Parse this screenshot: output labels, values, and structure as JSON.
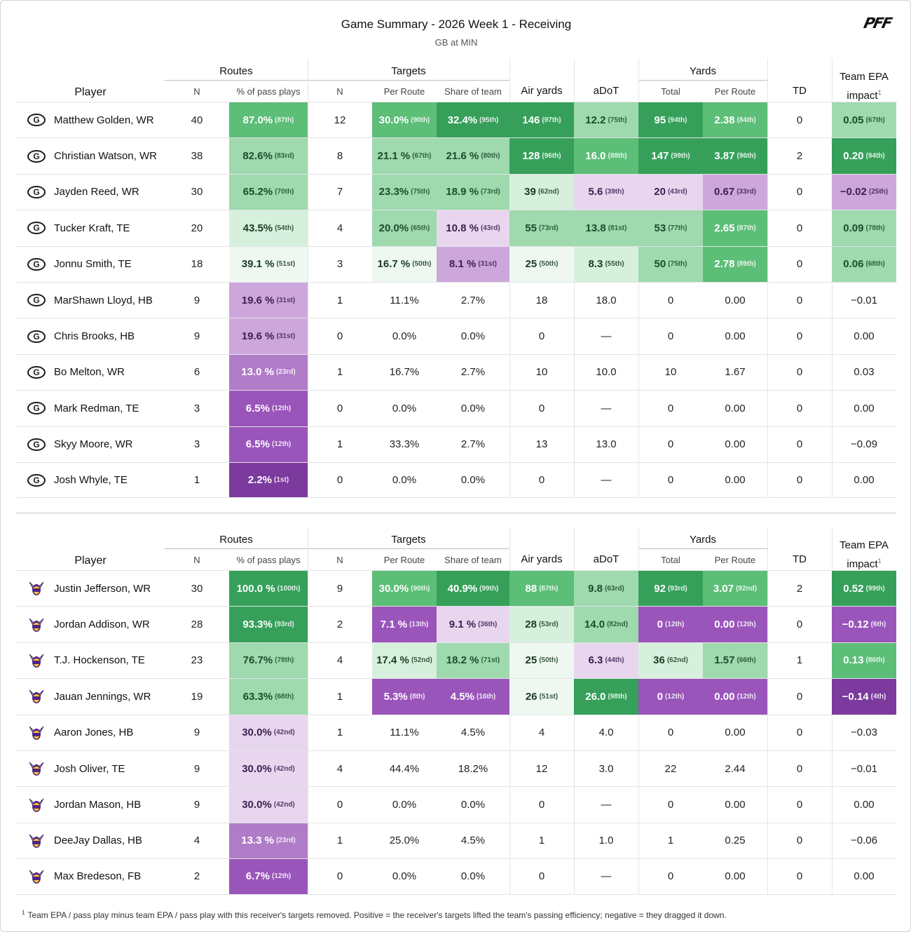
{
  "header": {
    "title": "Game Summary - 2026 Week 1 - Receiving",
    "subtitle": "GB at MIN",
    "brand": "PFF"
  },
  "columns": {
    "player": "Player",
    "routes_group": "Routes",
    "targets_group": "Targets",
    "yards_group": "Yards",
    "n": "N",
    "pct_pass": "% of pass plays",
    "per_route": "Per Route",
    "share": "Share of team",
    "air_yards": "Air yards",
    "adot": "aDoT",
    "total": "Total",
    "td": "TD",
    "epa_line1": "Team EPA",
    "epa_line2": "impact",
    "epa_note": "1"
  },
  "teams": [
    {
      "logo": "packers-g-icon",
      "rows": [
        {
          "name": "Matthew Golden, WR",
          "routes": "40",
          "pct": "87.0%",
          "pct_r": "(87th)",
          "tgt": "12",
          "tpr": "30.0%",
          "tpr_r": "(90th)",
          "share": "32.4%",
          "share_r": "(95th)",
          "air": "146",
          "air_r": "(97th)",
          "adot": "12.2",
          "adot_r": "(75th)",
          "yds": "95",
          "yds_r": "(94th)",
          "ypr": "2.38",
          "ypr_r": "(84th)",
          "td": "0",
          "epa": "0.05",
          "epa_r": "(67th)"
        },
        {
          "name": "Christian Watson, WR",
          "routes": "38",
          "pct": "82.6%",
          "pct_r": "(83rd)",
          "tgt": "8",
          "tpr": "21.1 %",
          "tpr_r": "(67th)",
          "share": "21.6 %",
          "share_r": "(80th)",
          "air": "128",
          "air_r": "(96th)",
          "adot": "16.0",
          "adot_r": "(88th)",
          "yds": "147",
          "yds_r": "(99th)",
          "ypr": "3.87",
          "ypr_r": "(96th)",
          "td": "2",
          "epa": "0.20",
          "epa_r": "(94th)"
        },
        {
          "name": "Jayden Reed, WR",
          "routes": "30",
          "pct": "65.2%",
          "pct_r": "(70th)",
          "tgt": "7",
          "tpr": "23.3%",
          "tpr_r": "(75th)",
          "share": "18.9 %",
          "share_r": "(73rd)",
          "air": "39",
          "air_r": "(62nd)",
          "adot": "5.6",
          "adot_r": "(39th)",
          "yds": "20",
          "yds_r": "(43rd)",
          "ypr": "0.67",
          "ypr_r": "(33rd)",
          "td": "0",
          "epa": "−0.02",
          "epa_r": "(25th)"
        },
        {
          "name": "Tucker Kraft, TE",
          "routes": "20",
          "pct": "43.5%",
          "pct_r": "(54th)",
          "tgt": "4",
          "tpr": "20.0%",
          "tpr_r": "(65th)",
          "share": "10.8 %",
          "share_r": "(43rd)",
          "air": "55",
          "air_r": "(73rd)",
          "adot": "13.8",
          "adot_r": "(81st)",
          "yds": "53",
          "yds_r": "(77th)",
          "ypr": "2.65",
          "ypr_r": "(87th)",
          "td": "0",
          "epa": "0.09",
          "epa_r": "(78th)"
        },
        {
          "name": "Jonnu Smith, TE",
          "routes": "18",
          "pct": "39.1 %",
          "pct_r": "(51st)",
          "tgt": "3",
          "tpr": "16.7 %",
          "tpr_r": "(50th)",
          "share": "8.1 %",
          "share_r": "(31st)",
          "air": "25",
          "air_r": "(50th)",
          "adot": "8.3",
          "adot_r": "(55th)",
          "yds": "50",
          "yds_r": "(75th)",
          "ypr": "2.78",
          "ypr_r": "(89th)",
          "td": "0",
          "epa": "0.06",
          "epa_r": "(68th)"
        },
        {
          "name": "MarShawn Lloyd, HB",
          "routes": "9",
          "pct": "19.6 %",
          "pct_r": "(31st)",
          "tgt": "1",
          "tpr": "11.1%",
          "tpr_r": "",
          "share": "2.7%",
          "share_r": "",
          "air": "18",
          "air_r": "",
          "adot": "18.0",
          "adot_r": "",
          "yds": "0",
          "yds_r": "",
          "ypr": "0.00",
          "ypr_r": "",
          "td": "0",
          "epa": "−0.01",
          "epa_r": ""
        },
        {
          "name": "Chris Brooks, HB",
          "routes": "9",
          "pct": "19.6 %",
          "pct_r": "(31st)",
          "tgt": "0",
          "tpr": "0.0%",
          "tpr_r": "",
          "share": "0.0%",
          "share_r": "",
          "air": "0",
          "air_r": "",
          "adot": "—",
          "adot_r": "",
          "yds": "0",
          "yds_r": "",
          "ypr": "0.00",
          "ypr_r": "",
          "td": "0",
          "epa": "0.00",
          "epa_r": ""
        },
        {
          "name": "Bo Melton, WR",
          "routes": "6",
          "pct": "13.0 %",
          "pct_r": "(23rd)",
          "tgt": "1",
          "tpr": "16.7%",
          "tpr_r": "",
          "share": "2.7%",
          "share_r": "",
          "air": "10",
          "air_r": "",
          "adot": "10.0",
          "adot_r": "",
          "yds": "10",
          "yds_r": "",
          "ypr": "1.67",
          "ypr_r": "",
          "td": "0",
          "epa": "0.03",
          "epa_r": ""
        },
        {
          "name": "Mark Redman, TE",
          "routes": "3",
          "pct": "6.5%",
          "pct_r": "(12th)",
          "tgt": "0",
          "tpr": "0.0%",
          "tpr_r": "",
          "share": "0.0%",
          "share_r": "",
          "air": "0",
          "air_r": "",
          "adot": "—",
          "adot_r": "",
          "yds": "0",
          "yds_r": "",
          "ypr": "0.00",
          "ypr_r": "",
          "td": "0",
          "epa": "0.00",
          "epa_r": ""
        },
        {
          "name": "Skyy Moore, WR",
          "routes": "3",
          "pct": "6.5%",
          "pct_r": "(12th)",
          "tgt": "1",
          "tpr": "33.3%",
          "tpr_r": "",
          "share": "2.7%",
          "share_r": "",
          "air": "13",
          "air_r": "",
          "adot": "13.0",
          "adot_r": "",
          "yds": "0",
          "yds_r": "",
          "ypr": "0.00",
          "ypr_r": "",
          "td": "0",
          "epa": "−0.09",
          "epa_r": ""
        },
        {
          "name": "Josh Whyle, TE",
          "routes": "1",
          "pct": "2.2%",
          "pct_r": "(1st)",
          "tgt": "0",
          "tpr": "0.0%",
          "tpr_r": "",
          "share": "0.0%",
          "share_r": "",
          "air": "0",
          "air_r": "",
          "adot": "—",
          "adot_r": "",
          "yds": "0",
          "yds_r": "",
          "ypr": "0.00",
          "ypr_r": "",
          "td": "0",
          "epa": "0.00",
          "epa_r": ""
        }
      ]
    },
    {
      "logo": "vikings-head-icon",
      "rows": [
        {
          "name": "Justin Jefferson, WR",
          "routes": "30",
          "pct": "100.0 %",
          "pct_r": "(100th)",
          "tgt": "9",
          "tpr": "30.0%",
          "tpr_r": "(90th)",
          "share": "40.9%",
          "share_r": "(99th)",
          "air": "88",
          "air_r": "(87th)",
          "adot": "9.8",
          "adot_r": "(63rd)",
          "yds": "92",
          "yds_r": "(93rd)",
          "ypr": "3.07",
          "ypr_r": "(92nd)",
          "td": "2",
          "epa": "0.52",
          "epa_r": "(99th)"
        },
        {
          "name": "Jordan Addison, WR",
          "routes": "28",
          "pct": "93.3%",
          "pct_r": "(93rd)",
          "tgt": "2",
          "tpr": "7.1 %",
          "tpr_r": "(13th)",
          "share": "9.1 %",
          "share_r": "(36th)",
          "air": "28",
          "air_r": "(53rd)",
          "adot": "14.0",
          "adot_r": "(82nd)",
          "yds": "0",
          "yds_r": "(12th)",
          "ypr": "0.00",
          "ypr_r": "(12th)",
          "td": "0",
          "epa": "−0.12",
          "epa_r": "(6th)"
        },
        {
          "name": "T.J. Hockenson, TE",
          "routes": "23",
          "pct": "76.7%",
          "pct_r": "(78th)",
          "tgt": "4",
          "tpr": "17.4 %",
          "tpr_r": "(52nd)",
          "share": "18.2 %",
          "share_r": "(71st)",
          "air": "25",
          "air_r": "(50th)",
          "adot": "6.3",
          "adot_r": "(44th)",
          "yds": "36",
          "yds_r": "(62nd)",
          "ypr": "1.57",
          "ypr_r": "(66th)",
          "td": "1",
          "epa": "0.13",
          "epa_r": "(86th)"
        },
        {
          "name": "Jauan Jennings, WR",
          "routes": "19",
          "pct": "63.3%",
          "pct_r": "(68th)",
          "tgt": "1",
          "tpr": "5.3%",
          "tpr_r": "(8th)",
          "share": "4.5%",
          "share_r": "(16th)",
          "air": "26",
          "air_r": "(51st)",
          "adot": "26.0",
          "adot_r": "(98th)",
          "yds": "0",
          "yds_r": "(12th)",
          "ypr": "0.00",
          "ypr_r": "(12th)",
          "td": "0",
          "epa": "−0.14",
          "epa_r": "(4th)"
        },
        {
          "name": "Aaron Jones, HB",
          "routes": "9",
          "pct": "30.0%",
          "pct_r": "(42nd)",
          "tgt": "1",
          "tpr": "11.1%",
          "tpr_r": "",
          "share": "4.5%",
          "share_r": "",
          "air": "4",
          "air_r": "",
          "adot": "4.0",
          "adot_r": "",
          "yds": "0",
          "yds_r": "",
          "ypr": "0.00",
          "ypr_r": "",
          "td": "0",
          "epa": "−0.03",
          "epa_r": ""
        },
        {
          "name": "Josh Oliver, TE",
          "routes": "9",
          "pct": "30.0%",
          "pct_r": "(42nd)",
          "tgt": "4",
          "tpr": "44.4%",
          "tpr_r": "",
          "share": "18.2%",
          "share_r": "",
          "air": "12",
          "air_r": "",
          "adot": "3.0",
          "adot_r": "",
          "yds": "22",
          "yds_r": "",
          "ypr": "2.44",
          "ypr_r": "",
          "td": "0",
          "epa": "−0.01",
          "epa_r": ""
        },
        {
          "name": "Jordan Mason, HB",
          "routes": "9",
          "pct": "30.0%",
          "pct_r": "(42nd)",
          "tgt": "0",
          "tpr": "0.0%",
          "tpr_r": "",
          "share": "0.0%",
          "share_r": "",
          "air": "0",
          "air_r": "",
          "adot": "—",
          "adot_r": "",
          "yds": "0",
          "yds_r": "",
          "ypr": "0.00",
          "ypr_r": "",
          "td": "0",
          "epa": "0.00",
          "epa_r": ""
        },
        {
          "name": "DeeJay Dallas, HB",
          "routes": "4",
          "pct": "13.3 %",
          "pct_r": "(23rd)",
          "tgt": "1",
          "tpr": "25.0%",
          "tpr_r": "",
          "share": "4.5%",
          "share_r": "",
          "air": "1",
          "air_r": "",
          "adot": "1.0",
          "adot_r": "",
          "yds": "1",
          "yds_r": "",
          "ypr": "0.25",
          "ypr_r": "",
          "td": "0",
          "epa": "−0.06",
          "epa_r": ""
        },
        {
          "name": "Max Bredeson, FB",
          "routes": "2",
          "pct": "6.7%",
          "pct_r": "(12th)",
          "tgt": "0",
          "tpr": "0.0%",
          "tpr_r": "",
          "share": "0.0%",
          "share_r": "",
          "air": "0",
          "air_r": "",
          "adot": "—",
          "adot_r": "",
          "yds": "0",
          "yds_r": "",
          "ypr": "0.00",
          "ypr_r": "",
          "td": "0",
          "epa": "0.00",
          "epa_r": ""
        }
      ]
    }
  ],
  "footnote": {
    "mark": "1",
    "text": "Team EPA / pass play minus team EPA / pass play with this receiver's targets removed. Positive = the receiver's targets lifted the team's passing efficiency; negative = they dragged it down."
  },
  "colors": {
    "green_dark": "#36a05a",
    "green_light": "#9fd9ae",
    "purple_dark": "#7c3a9e",
    "purple_light": "#e8d6ef"
  }
}
